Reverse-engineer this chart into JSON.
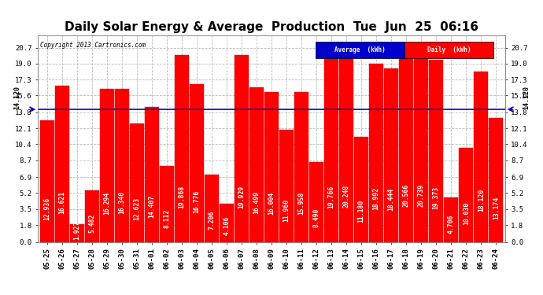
{
  "title": "Daily Solar Energy & Average  Production  Tue  Jun  25  06:16",
  "copyright": "Copyright 2013 Cartronics.com",
  "average": 14.12,
  "average_label": "14.120",
  "categories": [
    "05-25",
    "05-26",
    "05-27",
    "05-28",
    "05-29",
    "05-30",
    "05-31",
    "06-01",
    "06-02",
    "06-03",
    "06-04",
    "06-05",
    "06-06",
    "06-07",
    "06-08",
    "06-09",
    "06-10",
    "06-11",
    "06-12",
    "06-13",
    "06-14",
    "06-15",
    "06-16",
    "06-17",
    "06-18",
    "06-19",
    "06-20",
    "06-21",
    "06-22",
    "06-23",
    "06-24"
  ],
  "values": [
    12.936,
    16.621,
    1.927,
    5.482,
    16.294,
    16.34,
    12.623,
    14.407,
    8.112,
    19.868,
    16.776,
    7.206,
    4.106,
    19.929,
    16.499,
    16.004,
    11.96,
    15.958,
    8.49,
    19.766,
    20.248,
    11.18,
    18.992,
    18.444,
    20.566,
    20.739,
    19.373,
    4.706,
    10.03,
    18.12,
    13.174
  ],
  "bar_color": "#ff0000",
  "avg_line_color": "#0000cd",
  "background_color": "#ffffff",
  "grid_color": "#bbbbbb",
  "title_fontsize": 11,
  "tick_fontsize": 6.5,
  "value_fontsize": 5.8,
  "yticks": [
    0.0,
    1.8,
    3.5,
    5.2,
    6.9,
    8.7,
    10.4,
    12.1,
    13.8,
    15.6,
    17.3,
    19.0,
    20.7
  ],
  "ylim": [
    0.0,
    22.0
  ],
  "legend_avg_label": "Average  (kWh)",
  "legend_daily_label": "Daily  (kWh)"
}
